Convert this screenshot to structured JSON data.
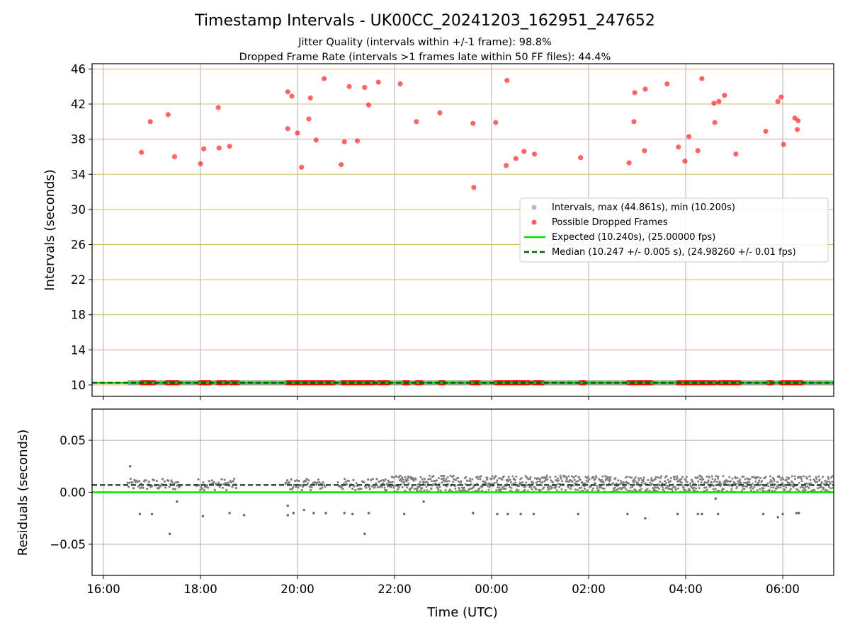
{
  "figure": {
    "title": "Timestamp Intervals - UK00CC_20241203_162951_247652",
    "subtitle_1": "Jitter Quality (intervals within +/-1 frame): 98.8%",
    "subtitle_2": "Dropped Frame Rate (intervals >1 frames late within 50 FF files): 44.4%"
  },
  "colors": {
    "intervals": "#808080",
    "dropped": "#ff0000",
    "expected": "#00e000",
    "median": "#006400",
    "hgrid_top": "#d4b96a",
    "grid": "#b0b0b0"
  },
  "chart_data": [
    {
      "type": "scatter",
      "panel": "top",
      "ylabel": "Intervals (seconds)",
      "xlabel": "",
      "ylim": [
        8.7,
        46.6
      ],
      "yticks": [
        "10",
        "14",
        "18",
        "22",
        "26",
        "30",
        "34",
        "38",
        "42",
        "46"
      ],
      "xlim": [
        "15:46",
        "07:03"
      ],
      "grid": "on",
      "legend_position": "center-right",
      "legend": [
        "Intervals, max (44.861s), min (10.200s)",
        "Possible Dropped Frames",
        "Expected (10.240s), (25.00000 fps)",
        "Median (10.247 +/- 0.005 s), (24.98260 +/- 0.01 fps)"
      ],
      "series": [
        {
          "name": "Expected (10.240s), (25.00000 fps)",
          "type": "hline",
          "y": 10.24
        },
        {
          "name": "Median (10.247 +/- 0.005 s), (24.98260 +/- 0.01 fps)",
          "type": "hline",
          "y": 10.247
        },
        {
          "name": "Intervals, max (44.861s), min (10.200s)",
          "type": "band",
          "x_start": "16:30",
          "x_end": "07:03",
          "y": 10.25
        },
        {
          "name": "Possible Dropped Frames",
          "type": "scatter",
          "points": [
            [
              "16:47",
              36.5
            ],
            [
              "16:58",
              40.0
            ],
            [
              "17:20",
              40.8
            ],
            [
              "17:28",
              36.0
            ],
            [
              "18:00",
              35.2
            ],
            [
              "18:04",
              36.9
            ],
            [
              "18:22",
              41.6
            ],
            [
              "18:23",
              37.0
            ],
            [
              "18:36",
              37.2
            ],
            [
              "19:48",
              43.4
            ],
            [
              "19:48",
              39.2
            ],
            [
              "19:53",
              42.9
            ],
            [
              "20:00",
              38.7
            ],
            [
              "20:05",
              34.8
            ],
            [
              "20:14",
              40.3
            ],
            [
              "20:16",
              42.7
            ],
            [
              "20:23",
              37.9
            ],
            [
              "20:33",
              44.9
            ],
            [
              "20:54",
              35.1
            ],
            [
              "20:58",
              37.7
            ],
            [
              "21:04",
              44.0
            ],
            [
              "21:14",
              37.8
            ],
            [
              "21:23",
              43.9
            ],
            [
              "21:28",
              41.9
            ],
            [
              "21:40",
              44.5
            ],
            [
              "22:07",
              44.3
            ],
            [
              "22:27",
              40.0
            ],
            [
              "22:56",
              41.0
            ],
            [
              "23:37",
              39.8
            ],
            [
              "23:38",
              32.5
            ],
            [
              "00:05",
              39.9
            ],
            [
              "00:18",
              35.0
            ],
            [
              "00:19",
              44.7
            ],
            [
              "00:30",
              35.8
            ],
            [
              "00:40",
              36.6
            ],
            [
              "00:53",
              36.3
            ],
            [
              "01:50",
              35.9
            ],
            [
              "02:50",
              35.3
            ],
            [
              "02:56",
              40.0
            ],
            [
              "02:57",
              43.3
            ],
            [
              "03:09",
              36.7
            ],
            [
              "03:10",
              43.7
            ],
            [
              "03:37",
              44.3
            ],
            [
              "03:51",
              37.1
            ],
            [
              "03:59",
              35.5
            ],
            [
              "04:04",
              38.3
            ],
            [
              "04:15",
              36.7
            ],
            [
              "04:20",
              44.9
            ],
            [
              "04:35",
              42.1
            ],
            [
              "04:36",
              39.9
            ],
            [
              "04:41",
              42.3
            ],
            [
              "04:48",
              43.0
            ],
            [
              "05:02",
              36.3
            ],
            [
              "05:39",
              38.9
            ],
            [
              "05:54",
              42.3
            ],
            [
              "05:58",
              42.8
            ],
            [
              "06:01",
              37.4
            ],
            [
              "06:15",
              40.4
            ],
            [
              "06:18",
              39.1
            ],
            [
              "06:19",
              40.1
            ]
          ]
        },
        {
          "name": "Possible Dropped Frames",
          "type": "baseline_clusters",
          "y": 10.25,
          "ranges": [
            [
              "16:47",
              "17:04"
            ],
            [
              "17:18",
              "17:33"
            ],
            [
              "17:59",
              "18:13"
            ],
            [
              "18:21",
              "18:33"
            ],
            [
              "18:37",
              "18:47"
            ],
            [
              "19:47",
              "20:45"
            ],
            [
              "20:55",
              "21:36"
            ],
            [
              "21:40",
              "21:53"
            ],
            [
              "22:11",
              "22:18"
            ],
            [
              "22:27",
              "22:34"
            ],
            [
              "22:56",
              "23:02"
            ],
            [
              "23:35",
              "23:46"
            ],
            [
              "00:05",
              "00:48"
            ],
            [
              "00:52",
              "01:04"
            ],
            [
              "01:50",
              "01:55"
            ],
            [
              "02:49",
              "03:19"
            ],
            [
              "03:50",
              "04:38"
            ],
            [
              "04:41",
              "05:07"
            ],
            [
              "05:42",
              "05:48"
            ],
            [
              "05:58",
              "06:24"
            ]
          ]
        }
      ]
    },
    {
      "type": "scatter",
      "panel": "bottom",
      "ylabel": "Residuals (seconds)",
      "xlabel": "Time (UTC)",
      "ylim": [
        -0.08,
        0.08
      ],
      "yticks": [
        "0.05",
        "0.00",
        "−0.05"
      ],
      "xticks": [
        "16:00",
        "18:00",
        "20:00",
        "22:00",
        "00:00",
        "02:00",
        "04:00",
        "06:00"
      ],
      "xlim": [
        "15:46",
        "07:03"
      ],
      "grid": "on",
      "series": [
        {
          "name": "Expected",
          "type": "hline",
          "y": 0.0
        },
        {
          "name": "Median",
          "type": "hline",
          "y": 0.007
        },
        {
          "name": "Residuals",
          "type": "scatter_band",
          "sparse_ranges": [
            [
              "16:30",
              "17:35"
            ],
            [
              "17:55",
              "18:45"
            ],
            [
              "19:45",
              "20:35"
            ],
            [
              "20:50",
              "21:45"
            ]
          ],
          "dense_range": [
            "21:45",
            "07:03"
          ],
          "outliers": [
            [
              "16:33",
              0.025
            ],
            [
              "16:45",
              -0.021
            ],
            [
              "17:00",
              -0.021
            ],
            [
              "17:22",
              -0.04
            ],
            [
              "17:31",
              -0.009
            ],
            [
              "18:03",
              -0.023
            ],
            [
              "18:36",
              -0.02
            ],
            [
              "18:54",
              -0.022
            ],
            [
              "19:48",
              -0.013
            ],
            [
              "19:48",
              -0.022
            ],
            [
              "19:55",
              -0.02
            ],
            [
              "20:08",
              -0.017
            ],
            [
              "20:20",
              -0.02
            ],
            [
              "20:35",
              -0.02
            ],
            [
              "20:58",
              -0.02
            ],
            [
              "21:08",
              -0.021
            ],
            [
              "21:23",
              -0.04
            ],
            [
              "21:28",
              -0.02
            ],
            [
              "22:12",
              -0.021
            ],
            [
              "22:36",
              -0.009
            ],
            [
              "23:37",
              -0.02
            ],
            [
              "00:07",
              -0.021
            ],
            [
              "00:20",
              -0.021
            ],
            [
              "00:36",
              -0.021
            ],
            [
              "00:52",
              -0.021
            ],
            [
              "01:47",
              -0.021
            ],
            [
              "02:48",
              -0.021
            ],
            [
              "03:10",
              -0.025
            ],
            [
              "03:50",
              -0.021
            ],
            [
              "04:15",
              -0.021
            ],
            [
              "04:20",
              -0.021
            ],
            [
              "04:37",
              -0.006
            ],
            [
              "04:40",
              -0.021
            ],
            [
              "05:36",
              -0.021
            ],
            [
              "05:54",
              -0.024
            ],
            [
              "06:00",
              -0.021
            ],
            [
              "06:17",
              -0.02
            ],
            [
              "06:20",
              -0.02
            ]
          ]
        }
      ]
    }
  ]
}
